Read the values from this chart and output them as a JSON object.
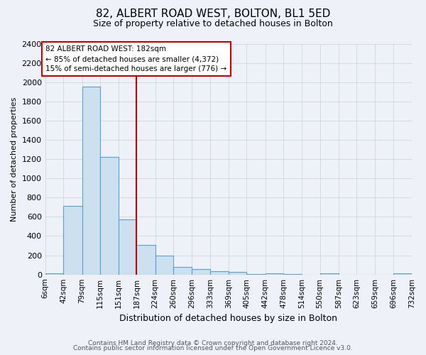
{
  "title": "82, ALBERT ROAD WEST, BOLTON, BL1 5ED",
  "subtitle": "Size of property relative to detached houses in Bolton",
  "xlabel": "Distribution of detached houses by size in Bolton",
  "ylabel": "Number of detached properties",
  "footer_line1": "Contains HM Land Registry data © Crown copyright and database right 2024.",
  "footer_line2": "Contains public sector information licensed under the Open Government Licence v3.0.",
  "annotation_title": "82 ALBERT ROAD WEST: 182sqm",
  "annotation_line2": "← 85% of detached houses are smaller (4,372)",
  "annotation_line3": "15% of semi-detached houses are larger (776) →",
  "vline_x": 187,
  "bar_edge_color": "#5a9fd4",
  "bar_face_color": "#cde0f0",
  "vline_color": "#cc0000",
  "background_color": "#eef2f8",
  "ylim": [
    0,
    2400
  ],
  "yticks": [
    0,
    200,
    400,
    600,
    800,
    1000,
    1200,
    1400,
    1600,
    1800,
    2000,
    2200,
    2400
  ],
  "bins": [
    6,
    42,
    79,
    115,
    151,
    187,
    224,
    260,
    296,
    333,
    369,
    405,
    442,
    478,
    514,
    550,
    587,
    623,
    659,
    696,
    732
  ],
  "counts": [
    15,
    710,
    1950,
    1225,
    575,
    305,
    200,
    80,
    55,
    35,
    30,
    5,
    15,
    5,
    0,
    15,
    0,
    0,
    0,
    15
  ],
  "annotation_box_color": "#ffffff",
  "annotation_box_edge": "#cc0000",
  "grid_color": "#c8d0dc",
  "title_fontsize": 11,
  "subtitle_fontsize": 9,
  "xlabel_fontsize": 9,
  "ylabel_fontsize": 8,
  "tick_fontsize": 7.5,
  "footer_fontsize": 6.5
}
